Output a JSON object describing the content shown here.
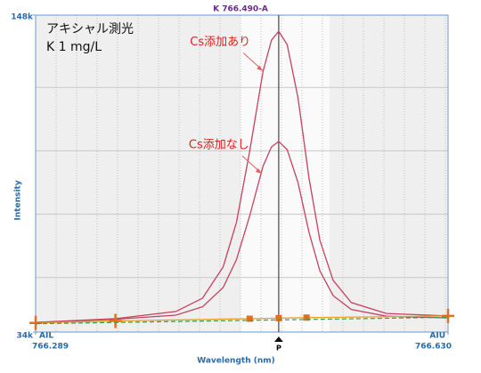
{
  "chart_data": {
    "type": "line",
    "title": "K 766.490-A",
    "xlabel": "Wavelength (nm)",
    "ylabel": "Intensity",
    "notes": [
      "アキシャル測光",
      "K 1 mg/L"
    ],
    "annotations": [
      {
        "text": "Cs添加あり",
        "x": 766.477,
        "y": 128000
      },
      {
        "text": "Cs添加なし",
        "x": 766.476,
        "y": 91000
      }
    ],
    "cursor": {
      "x": 766.49,
      "label": "P"
    },
    "axis_end_labels": [
      "AIL",
      "AIU"
    ],
    "xlim": [
      766.289,
      766.63
    ],
    "xticks": [
      766.289,
      {
        "value": 766.63,
        "label": "766.630"
      }
    ],
    "ylim": [
      34000,
      148000
    ],
    "yticks": [
      {
        "value": 148000,
        "label": "148k"
      },
      {
        "value": 34000,
        "label": "34k"
      }
    ],
    "grid": true,
    "series": [
      {
        "color": "#c8405e",
        "x": [
          766.289,
          766.355,
          766.405,
          766.427,
          766.444,
          766.455,
          766.466,
          766.477,
          766.484,
          766.49,
          766.497,
          766.506,
          766.515,
          766.524,
          766.535,
          766.55,
          766.579,
          766.63
        ],
        "values": [
          37500,
          38800,
          41400,
          46200,
          57400,
          73400,
          99000,
          127800,
          139000,
          142200,
          137400,
          118200,
          89400,
          67000,
          52600,
          44600,
          40700,
          39800
        ]
      },
      {
        "color": "#c8405e",
        "x": [
          766.289,
          766.355,
          766.405,
          766.427,
          766.444,
          766.455,
          766.466,
          766.477,
          766.484,
          766.49,
          766.497,
          766.506,
          766.515,
          766.524,
          766.535,
          766.55,
          766.579,
          766.63
        ],
        "values": [
          37500,
          38600,
          40100,
          43100,
          50000,
          60000,
          75800,
          93700,
          100600,
          102600,
          99600,
          87700,
          69900,
          56000,
          47100,
          42100,
          39700,
          39100
        ]
      },
      {
        "color": "#e8a020",
        "x": [
          766.289,
          766.355,
          766.466,
          766.49,
          766.513,
          766.63
        ],
        "values": [
          37300,
          38000,
          38800,
          39000,
          39200,
          39800
        ],
        "markers": [
          "cross",
          "cross",
          "square",
          "square",
          "square",
          "cross"
        ],
        "marker_color": "#e07020"
      },
      {
        "color": "#3a9a50",
        "dashed": true,
        "x": [
          766.289,
          766.63
        ],
        "values": [
          37000,
          39300
        ]
      }
    ]
  }
}
